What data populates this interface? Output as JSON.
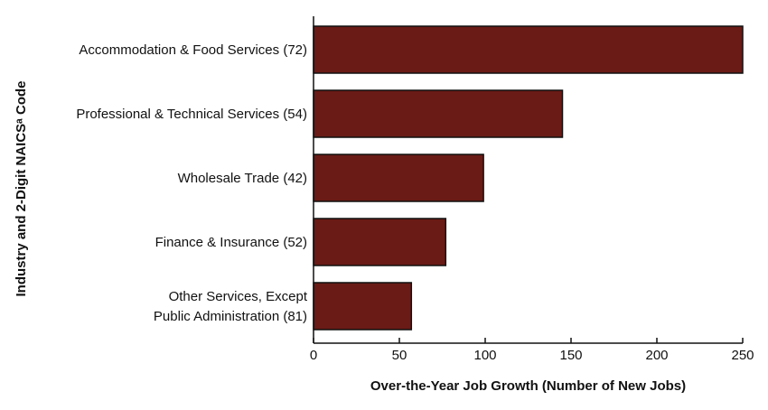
{
  "chart_data": {
    "type": "bar",
    "orientation": "horizontal",
    "categories": [
      [
        "Accommodation & Food Services (72)"
      ],
      [
        "Professional & Technical Services (54)"
      ],
      [
        "Wholesale Trade (42)"
      ],
      [
        "Finance & Insurance (52)"
      ],
      [
        "Other Services, Except",
        "Public Administration (81)"
      ]
    ],
    "values": [
      250,
      145,
      99,
      77,
      57
    ],
    "xlabel": "Over-the-Year Job Growth (Number of New Jobs)",
    "ylabel": "Industry and 2-Digit NAICSᵃ Code",
    "xlim": [
      0,
      250
    ],
    "xticks": [
      0,
      50,
      100,
      150,
      200,
      250
    ],
    "grid": false,
    "bar_color": "#6a1b16",
    "edge_color": "#111111"
  }
}
